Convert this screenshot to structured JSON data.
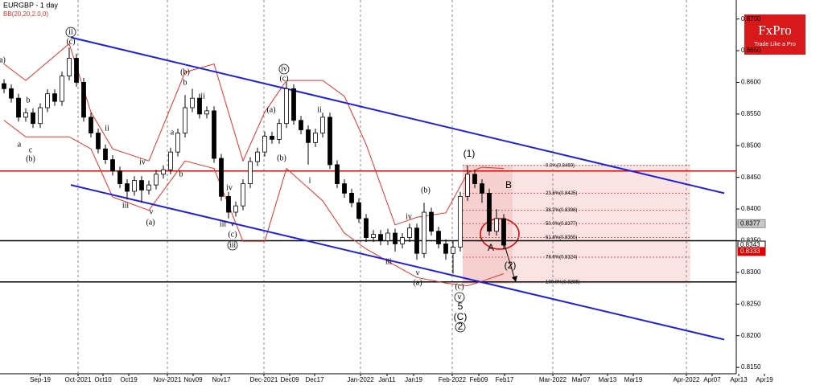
{
  "header": {
    "symbol": "EURGBP - 1 day",
    "logo": "FxPro",
    "tagline": "Trade Like a Pro"
  },
  "chart_data": {
    "type": "candlestick",
    "ylim": [
      0.814,
      0.873
    ],
    "yticks": [
      {
        "value": 0.87,
        "label": "0.8700"
      },
      {
        "value": 0.865,
        "label": "0.8650"
      },
      {
        "value": 0.86,
        "label": "0.8600"
      },
      {
        "value": 0.855,
        "label": "0.8550"
      },
      {
        "value": 0.85,
        "label": "0.8500"
      },
      {
        "value": 0.845,
        "label": "0.8450"
      },
      {
        "value": 0.84,
        "label": "0.8400"
      },
      {
        "value": 0.835,
        "label": "0.8350"
      },
      {
        "value": 0.83,
        "label": "0.8300"
      },
      {
        "value": 0.825,
        "label": "0.8250"
      },
      {
        "value": 0.82,
        "label": "0.8200"
      },
      {
        "value": 0.815,
        "label": "0.8150"
      }
    ],
    "x_labels": [
      "Sep-19",
      "Oct-2021",
      "Oct10",
      "Oct19",
      "Nov-2021",
      "Nov09",
      "Nov17",
      "Dec-2021",
      "Dec09",
      "Dec17",
      "Jan-2022",
      "Jan11",
      "Jan19",
      "Feb-2022",
      "Feb09",
      "Feb17",
      "Mar-2022",
      "Mar07",
      "Mar13",
      "Mar19",
      "Apr-2022",
      "Apr07",
      "Apr13",
      "Apr19"
    ],
    "candles": [
      [
        0.8598,
        0.8605,
        0.8583,
        0.859
      ],
      [
        0.859,
        0.8597,
        0.8568,
        0.8575
      ],
      [
        0.8575,
        0.8582,
        0.8538,
        0.8545
      ],
      [
        0.8545,
        0.8559,
        0.8538,
        0.8552
      ],
      [
        0.8552,
        0.8559,
        0.8528,
        0.8535
      ],
      [
        0.8535,
        0.8567,
        0.8528,
        0.856
      ],
      [
        0.856,
        0.8589,
        0.8553,
        0.8582
      ],
      [
        0.8582,
        0.8589,
        0.8563,
        0.857
      ],
      [
        0.857,
        0.8617,
        0.8563,
        0.861
      ],
      [
        0.861,
        0.8655,
        0.8603,
        0.8638
      ],
      [
        0.8638,
        0.8645,
        0.8593,
        0.86
      ],
      [
        0.86,
        0.8607,
        0.8538,
        0.8545
      ],
      [
        0.8545,
        0.8552,
        0.8513,
        0.852
      ],
      [
        0.852,
        0.8527,
        0.8488,
        0.8495
      ],
      [
        0.8495,
        0.8502,
        0.8471,
        0.8478
      ],
      [
        0.8478,
        0.8485,
        0.8453,
        0.846
      ],
      [
        0.846,
        0.8467,
        0.8433,
        0.844
      ],
      [
        0.844,
        0.8447,
        0.8415,
        0.8428
      ],
      [
        0.8428,
        0.8452,
        0.8421,
        0.8445
      ],
      [
        0.8445,
        0.8452,
        0.841,
        0.843
      ],
      [
        0.843,
        0.8445,
        0.8423,
        0.8438
      ],
      [
        0.8438,
        0.8462,
        0.8431,
        0.8455
      ],
      [
        0.8455,
        0.8469,
        0.8448,
        0.8462
      ],
      [
        0.8462,
        0.8497,
        0.8455,
        0.849
      ],
      [
        0.849,
        0.8527,
        0.8483,
        0.852
      ],
      [
        0.852,
        0.858,
        0.8513,
        0.856
      ],
      [
        0.856,
        0.859,
        0.8553,
        0.8575
      ],
      [
        0.8575,
        0.8582,
        0.8543,
        0.855
      ],
      [
        0.855,
        0.8562,
        0.8543,
        0.8555
      ],
      [
        0.8555,
        0.8562,
        0.8473,
        0.848
      ],
      [
        0.848,
        0.8487,
        0.8413,
        0.842
      ],
      [
        0.842,
        0.8427,
        0.8385,
        0.8395
      ],
      [
        0.8395,
        0.8412,
        0.8388,
        0.8405
      ],
      [
        0.8405,
        0.8447,
        0.8398,
        0.844
      ],
      [
        0.844,
        0.8482,
        0.8433,
        0.8475
      ],
      [
        0.8475,
        0.8497,
        0.8468,
        0.849
      ],
      [
        0.849,
        0.8522,
        0.8483,
        0.8515
      ],
      [
        0.8515,
        0.8522,
        0.8503,
        0.851
      ],
      [
        0.851,
        0.8542,
        0.8503,
        0.8535
      ],
      [
        0.8535,
        0.86,
        0.8528,
        0.859
      ],
      [
        0.859,
        0.8597,
        0.8533,
        0.854
      ],
      [
        0.854,
        0.8547,
        0.8518,
        0.8525
      ],
      [
        0.8525,
        0.8532,
        0.847,
        0.8505
      ],
      [
        0.8505,
        0.8527,
        0.8498,
        0.852
      ],
      [
        0.852,
        0.8552,
        0.8513,
        0.8545
      ],
      [
        0.8545,
        0.8552,
        0.8463,
        0.847
      ],
      [
        0.847,
        0.8477,
        0.8433,
        0.844
      ],
      [
        0.844,
        0.8447,
        0.8418,
        0.8425
      ],
      [
        0.8425,
        0.8432,
        0.8403,
        0.841
      ],
      [
        0.841,
        0.8417,
        0.8378,
        0.8385
      ],
      [
        0.8385,
        0.8392,
        0.8348,
        0.8355
      ],
      [
        0.8355,
        0.8367,
        0.8348,
        0.836
      ],
      [
        0.836,
        0.8367,
        0.8343,
        0.835
      ],
      [
        0.835,
        0.8369,
        0.8343,
        0.8362
      ],
      [
        0.8362,
        0.8369,
        0.8333,
        0.8345
      ],
      [
        0.8345,
        0.8362,
        0.8338,
        0.8355
      ],
      [
        0.8355,
        0.8377,
        0.8348,
        0.837
      ],
      [
        0.837,
        0.8377,
        0.832,
        0.833
      ],
      [
        0.833,
        0.841,
        0.8323,
        0.8395
      ],
      [
        0.8395,
        0.8402,
        0.8358,
        0.8365
      ],
      [
        0.8365,
        0.8372,
        0.8338,
        0.8345
      ],
      [
        0.8345,
        0.8352,
        0.832,
        0.833
      ],
      [
        0.833,
        0.835,
        0.8298,
        0.834
      ],
      [
        0.834,
        0.8427,
        0.8333,
        0.842
      ],
      [
        0.842,
        0.8469,
        0.8413,
        0.8455
      ],
      [
        0.8455,
        0.8462,
        0.8433,
        0.844
      ],
      [
        0.844,
        0.8447,
        0.841,
        0.8425
      ],
      [
        0.8425,
        0.8432,
        0.8358,
        0.8365
      ],
      [
        0.8365,
        0.84,
        0.8358,
        0.8385
      ],
      [
        0.8385,
        0.8392,
        0.8336,
        0.8343
      ]
    ],
    "bands": {
      "name": "BB(20,20,2.0,0)",
      "color": "#e8302a",
      "x": [
        0,
        3,
        9,
        12,
        15,
        20,
        25,
        29,
        33,
        36,
        39,
        44,
        47,
        50,
        54,
        57,
        61,
        64,
        66,
        69
      ],
      "upper": [
        0.8629,
        0.8603,
        0.8661,
        0.8553,
        0.8495,
        0.8476,
        0.8616,
        0.8629,
        0.8476,
        0.8553,
        0.8603,
        0.8603,
        0.8578,
        0.8502,
        0.8375,
        0.8387,
        0.8394,
        0.8457,
        0.8466,
        0.8464
      ],
      "lower": [
        0.854,
        0.8514,
        0.8514,
        0.8495,
        0.8419,
        0.8398,
        0.8476,
        0.8464,
        0.8349,
        0.8349,
        0.8464,
        0.8413,
        0.8362,
        0.8337,
        0.8311,
        0.8292,
        0.8283,
        0.8279,
        0.8286,
        0.8298
      ]
    },
    "levels": [
      {
        "value": 0.846,
        "color": "#e00000"
      },
      {
        "value": 0.835,
        "color": "#000000"
      },
      {
        "value": 0.8285,
        "color": "#000000"
      }
    ],
    "channels": {
      "color": "#1f1fe0",
      "lines": [
        [
          0.8671,
          0.8425
        ],
        [
          0.8438,
          0.8194
        ]
      ]
    },
    "fib": [
      {
        "value": 0.8469,
        "label": "0.0%(0.8469)"
      },
      {
        "value": 0.8425,
        "label": "23.6%(0.8425)"
      },
      {
        "value": 0.8398,
        "label": "38.2%(0.8398)"
      },
      {
        "value": 0.8377,
        "label": "50.0%(0.8377)"
      },
      {
        "value": 0.8355,
        "label": "61.8%(0.8355)"
      },
      {
        "value": 0.8324,
        "label": "78.6%(0.8324)"
      },
      {
        "value": 0.8285,
        "label": "100.0%(0.8285)"
      }
    ],
    "price_tags": [
      0.8377,
      0.8343,
      0.8333
    ],
    "annotations": [
      "ii",
      "(c)",
      "a)",
      "(b)",
      "b",
      "ii",
      "iv",
      "(c)",
      "(a)",
      "ii",
      "(b)",
      "i",
      "b",
      "a",
      "c",
      "(b)",
      "ii",
      "iv",
      "iii",
      "v",
      "(a)",
      "a",
      "b",
      "iv",
      "iii",
      "v",
      "(c)",
      "iii",
      "iv",
      "(b)",
      "iii",
      "v",
      "(a)",
      "(c)",
      "v",
      "5",
      "(C)",
      "2",
      "(1)",
      "B",
      "A",
      "(2)"
    ]
  }
}
